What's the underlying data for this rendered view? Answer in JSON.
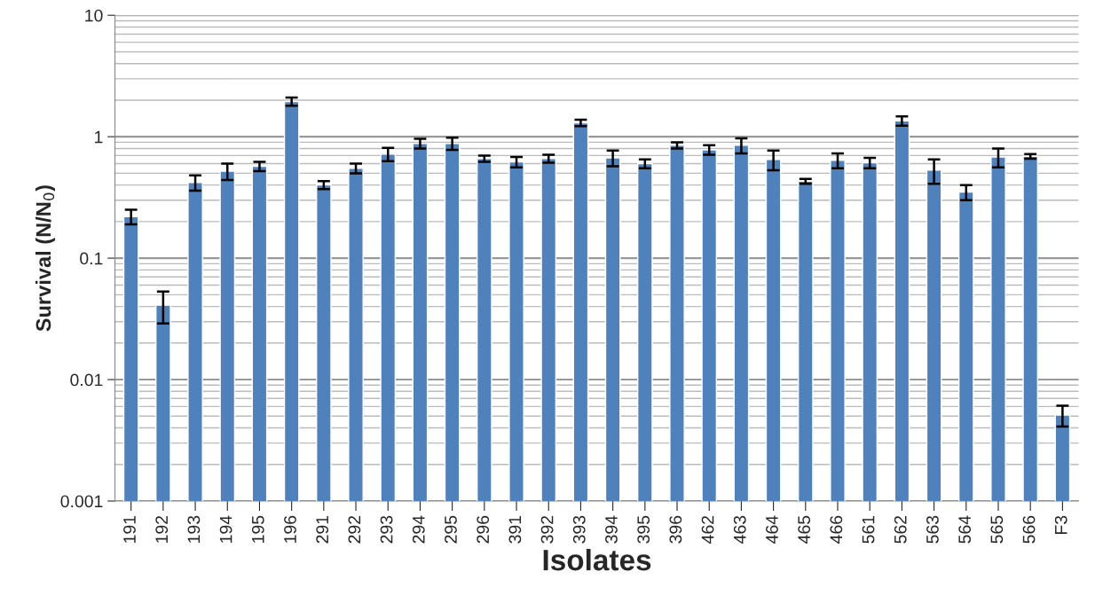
{
  "chart_data": {
    "type": "bar",
    "xlabel": "Isolates",
    "ylabel": "Survival (N/N$_{0}$)",
    "categories": [
      "191",
      "192",
      "193",
      "194",
      "195",
      "196",
      "291",
      "292",
      "293",
      "294",
      "295",
      "296",
      "391",
      "392",
      "393",
      "394",
      "395",
      "396",
      "462",
      "463",
      "464",
      "465",
      "466",
      "561",
      "562",
      "563",
      "564",
      "565",
      "566",
      "F3"
    ],
    "values": [
      0.22,
      0.041,
      0.42,
      0.52,
      0.57,
      1.95,
      0.4,
      0.55,
      0.72,
      0.88,
      0.88,
      0.66,
      0.62,
      0.66,
      1.3,
      0.67,
      0.6,
      0.85,
      0.78,
      0.85,
      0.65,
      0.43,
      0.64,
      0.61,
      1.35,
      0.53,
      0.35,
      0.68,
      0.69,
      0.0051
    ],
    "errors": [
      0.03,
      0.012,
      0.06,
      0.08,
      0.05,
      0.15,
      0.03,
      0.05,
      0.09,
      0.08,
      0.1,
      0.04,
      0.06,
      0.05,
      0.08,
      0.1,
      0.05,
      0.05,
      0.07,
      0.12,
      0.12,
      0.02,
      0.09,
      0.06,
      0.12,
      0.12,
      0.05,
      0.12,
      0.03,
      0.001
    ],
    "color": "#4f81bd",
    "log": "y",
    "ylim": [
      0.001,
      10
    ],
    "yticks": [
      {
        "value": 0.001,
        "label": "0.001"
      },
      {
        "value": 0.01,
        "label": "0.01"
      },
      {
        "value": 0.1,
        "label": "0.1"
      },
      1,
      10
    ],
    "grid": "y"
  }
}
